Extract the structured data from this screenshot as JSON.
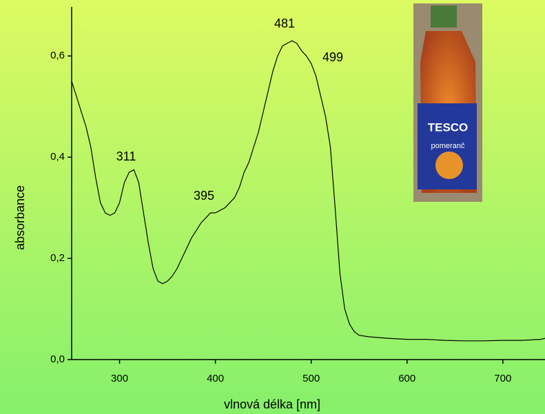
{
  "chart_data": {
    "type": "line",
    "x_label": "vlnová délka [nm]",
    "y_label": "absorbance",
    "annotations": [
      "311",
      "395",
      "481",
      "499"
    ],
    "inset_texts": [
      "TESCO",
      "pomeranč"
    ],
    "color": "#000000",
    "x": [
      250,
      255,
      260,
      265,
      270,
      275,
      280,
      285,
      290,
      295,
      300,
      305,
      310,
      315,
      320,
      325,
      330,
      335,
      340,
      345,
      350,
      355,
      360,
      365,
      370,
      375,
      380,
      385,
      390,
      395,
      400,
      405,
      410,
      415,
      420,
      425,
      430,
      435,
      440,
      445,
      450,
      455,
      460,
      465,
      470,
      475,
      480,
      485,
      490,
      495,
      500,
      505,
      510,
      515,
      520,
      525,
      530,
      535,
      540,
      545,
      550,
      560,
      580,
      600,
      620,
      640,
      660,
      680,
      700,
      720,
      740,
      744
    ],
    "values": [
      0.55,
      0.52,
      0.49,
      0.46,
      0.42,
      0.36,
      0.31,
      0.29,
      0.285,
      0.29,
      0.31,
      0.35,
      0.37,
      0.375,
      0.35,
      0.29,
      0.23,
      0.18,
      0.155,
      0.15,
      0.155,
      0.165,
      0.18,
      0.2,
      0.22,
      0.24,
      0.255,
      0.27,
      0.28,
      0.29,
      0.29,
      0.295,
      0.3,
      0.31,
      0.32,
      0.34,
      0.37,
      0.39,
      0.42,
      0.45,
      0.49,
      0.53,
      0.57,
      0.6,
      0.62,
      0.625,
      0.63,
      0.625,
      0.61,
      0.6,
      0.585,
      0.56,
      0.52,
      0.48,
      0.42,
      0.3,
      0.17,
      0.1,
      0.07,
      0.055,
      0.048,
      0.045,
      0.042,
      0.04,
      0.04,
      0.038,
      0.037,
      0.037,
      0.038,
      0.038,
      0.04,
      0.042
    ],
    "xlim": [
      250,
      744
    ],
    "ylim": [
      0,
      0.697
    ],
    "xticks": [
      300,
      400,
      500,
      600,
      700
    ],
    "yticks": [
      {
        "value": 0,
        "label": "0,0"
      },
      {
        "value": 0.2,
        "label": "0,2"
      },
      {
        "value": 0.4,
        "label": "0,4"
      },
      {
        "value": 0.6,
        "label": "0,6"
      }
    ]
  }
}
